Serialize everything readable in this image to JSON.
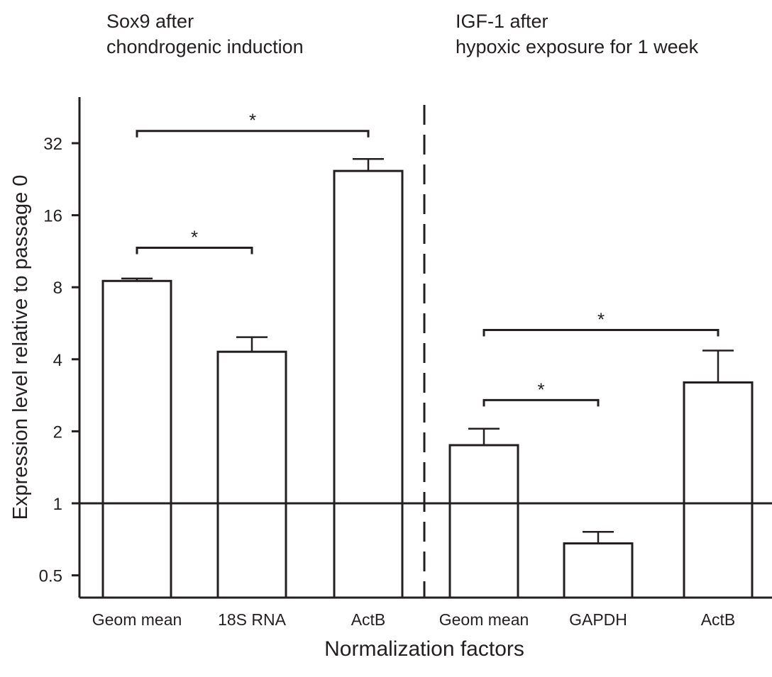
{
  "panels": [
    {
      "title_line1": "Sox9 after",
      "title_line2": "chondrogenic induction"
    },
    {
      "title_line1": "IGF-1 after",
      "title_line2": "hypoxic exposure for 1 week"
    }
  ],
  "chart_data": {
    "type": "bar",
    "xlabel": "Normalization factors",
    "ylabel": "Expression level relative to passage 0",
    "yscale": "log2",
    "ylim": [
      0.4,
      48
    ],
    "yticks": [
      0.5,
      1,
      2,
      4,
      8,
      16,
      32
    ],
    "reference_line": 1,
    "grid": false,
    "categories": [
      "Geom mean",
      "18S RNA",
      "ActB",
      "Geom mean",
      "GAPDH",
      "ActB"
    ],
    "groups": [
      {
        "name": "Sox9 after chondrogenic induction",
        "category_indices": [
          0,
          1,
          2
        ]
      },
      {
        "name": "IGF-1 after hypoxic exposure for 1 week",
        "category_indices": [
          3,
          4,
          5
        ]
      }
    ],
    "values": [
      8.5,
      4.3,
      24.5,
      1.75,
      0.68,
      3.2
    ],
    "error_upper": [
      8.7,
      4.95,
      27.5,
      2.05,
      0.76,
      4.35
    ],
    "significance": [
      {
        "from": 0,
        "to": 2,
        "value": 36,
        "label": "*"
      },
      {
        "from": 0,
        "to": 1,
        "value": 11.7,
        "label": "*"
      },
      {
        "from": 3,
        "to": 5,
        "value": 5.3,
        "label": "*"
      },
      {
        "from": 3,
        "to": 4,
        "value": 2.7,
        "label": "*"
      }
    ],
    "colors": {
      "bar_fill": "#ffffff",
      "stroke": "#231f20"
    }
  }
}
